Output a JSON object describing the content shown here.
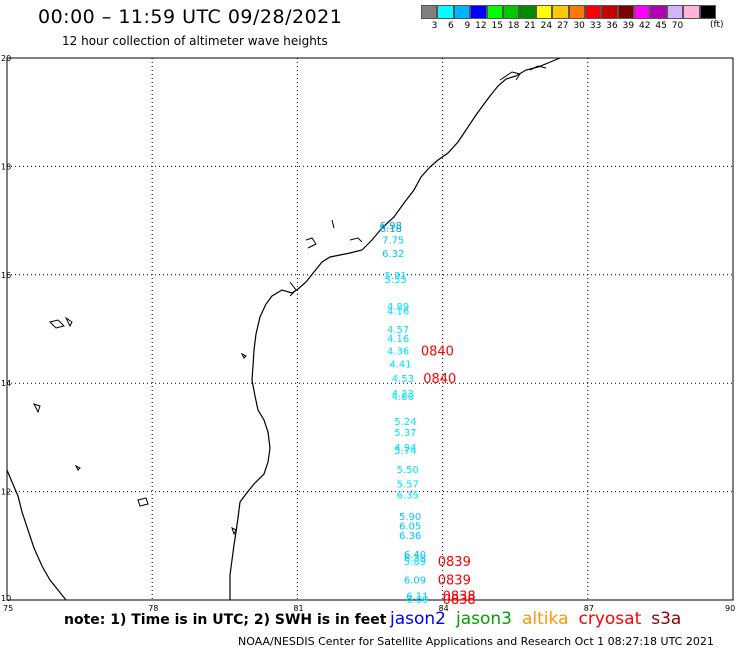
{
  "title": "00:00 – 11:59 UTC 09/28/2021",
  "subtitle": "12 hour collection of altimeter wave heights",
  "scale": {
    "colors": [
      "#808080",
      "#00ffff",
      "#00b4ff",
      "#0000ff",
      "#00ff00",
      "#00c800",
      "#008c00",
      "#ffff00",
      "#ffc800",
      "#ff7800",
      "#ff0000",
      "#c80000",
      "#780000",
      "#ff00ff",
      "#b400b4",
      "#d2b4ff",
      "#ffb4dc",
      "#000000"
    ],
    "labels": [
      "3",
      "6",
      "9",
      "12",
      "15",
      "18",
      "21",
      "24",
      "27",
      "30",
      "33",
      "36",
      "39",
      "42",
      "45",
      "70"
    ],
    "unit": "(ft)"
  },
  "axes": {
    "x_ticks": [
      "75",
      "78",
      "81",
      "84",
      "87",
      "90"
    ],
    "y_ticks": [
      "20",
      "18",
      "16",
      "14",
      "12",
      "10"
    ]
  },
  "observations": [
    {
      "lon": 82.7,
      "lat": 16.92,
      "text": "6.98",
      "color": "#00a8e0"
    },
    {
      "lon": 82.7,
      "lat": 16.86,
      "text": "6.18",
      "color": "#00a8e0"
    },
    {
      "lon": 82.75,
      "lat": 16.65,
      "text": "7.75",
      "color": "#00c8ff"
    },
    {
      "lon": 82.75,
      "lat": 16.4,
      "text": "6.32",
      "color": "#00c8ff"
    },
    {
      "lon": 82.8,
      "lat": 16.0,
      "text": "5.31",
      "color": "#00e5ff"
    },
    {
      "lon": 82.8,
      "lat": 15.92,
      "text": "5.55",
      "color": "#00e5ff"
    },
    {
      "lon": 82.85,
      "lat": 15.42,
      "text": "4.89",
      "color": "#00e5ff"
    },
    {
      "lon": 82.85,
      "lat": 15.34,
      "text": "4.16",
      "color": "#00e5ff"
    },
    {
      "lon": 82.85,
      "lat": 15.0,
      "text": "4.57",
      "color": "#00e5ff"
    },
    {
      "lon": 82.85,
      "lat": 14.83,
      "text": "4.16",
      "color": "#00e5ff"
    },
    {
      "lon": 82.85,
      "lat": 14.6,
      "text": "4.36",
      "color": "#00e5ff"
    },
    {
      "lon": 82.9,
      "lat": 14.36,
      "text": "4.41",
      "color": "#00e5ff"
    },
    {
      "lon": 82.95,
      "lat": 14.1,
      "text": "4.53",
      "color": "#00e5ff"
    },
    {
      "lon": 82.95,
      "lat": 13.82,
      "text": "4.23",
      "color": "#00e5ff"
    },
    {
      "lon": 82.95,
      "lat": 13.76,
      "text": "4.80",
      "color": "#00e5ff"
    },
    {
      "lon": 83.0,
      "lat": 13.3,
      "text": "5.24",
      "color": "#00e5ff"
    },
    {
      "lon": 83.0,
      "lat": 13.1,
      "text": "5.37",
      "color": "#00e5ff"
    },
    {
      "lon": 83.0,
      "lat": 12.82,
      "text": "4.94",
      "color": "#00e5ff"
    },
    {
      "lon": 83.0,
      "lat": 12.77,
      "text": "5.74",
      "color": "#00e5ff"
    },
    {
      "lon": 83.05,
      "lat": 12.42,
      "text": "5.50",
      "color": "#00e5ff"
    },
    {
      "lon": 83.05,
      "lat": 12.15,
      "text": "5.57",
      "color": "#00e5ff"
    },
    {
      "lon": 83.05,
      "lat": 11.95,
      "text": "6.35",
      "color": "#00e5ff"
    },
    {
      "lon": 83.1,
      "lat": 11.55,
      "text": "5.90",
      "color": "#00c8ff"
    },
    {
      "lon": 83.1,
      "lat": 11.37,
      "text": "6.05",
      "color": "#00c8ff"
    },
    {
      "lon": 83.1,
      "lat": 11.2,
      "text": "6.36",
      "color": "#00c8ff"
    },
    {
      "lon": 83.2,
      "lat": 10.85,
      "text": "6.40",
      "color": "#00c8ff"
    },
    {
      "lon": 83.2,
      "lat": 10.78,
      "text": "6.38",
      "color": "#00c8ff"
    },
    {
      "lon": 83.2,
      "lat": 10.72,
      "text": "5.89",
      "color": "#00e5ff"
    },
    {
      "lon": 83.2,
      "lat": 10.38,
      "text": "6.09",
      "color": "#00c8ff"
    },
    {
      "lon": 83.25,
      "lat": 10.08,
      "text": "6.11",
      "color": "#00c8ff"
    },
    {
      "lon": 83.25,
      "lat": 10.02,
      "text": "6.09",
      "color": "#00e5ff"
    }
  ],
  "passes": [
    {
      "lon": 83.55,
      "lat": 14.6,
      "text": "0840",
      "color": "#ff0000"
    },
    {
      "lon": 83.6,
      "lat": 14.1,
      "text": "0840",
      "color": "#ff0000"
    },
    {
      "lon": 83.9,
      "lat": 10.72,
      "text": "0839",
      "color": "#ff0000"
    },
    {
      "lon": 83.9,
      "lat": 10.38,
      "text": "0839",
      "color": "#ff0000"
    },
    {
      "lon": 84.0,
      "lat": 10.08,
      "text": "0838",
      "color": "#ff0000"
    },
    {
      "lon": 84.0,
      "lat": 10.02,
      "text": "0838",
      "color": "#ff0000"
    }
  ],
  "note": "note: 1) Time is in UTC; 2) SWH is in feet",
  "legend": [
    {
      "label": "jason2",
      "color": "#0000ff"
    },
    {
      "label": "jason3",
      "color": "#00a000"
    },
    {
      "label": "altika",
      "color": "#ff9900"
    },
    {
      "label": "cryosat",
      "color": "#ff0000"
    },
    {
      "label": "s3a",
      "color": "#8b0000"
    }
  ],
  "footer": "NOAA/NESDIS Center for Satellite Applications and Research   Oct  1 08:27:18 UTC 2021"
}
